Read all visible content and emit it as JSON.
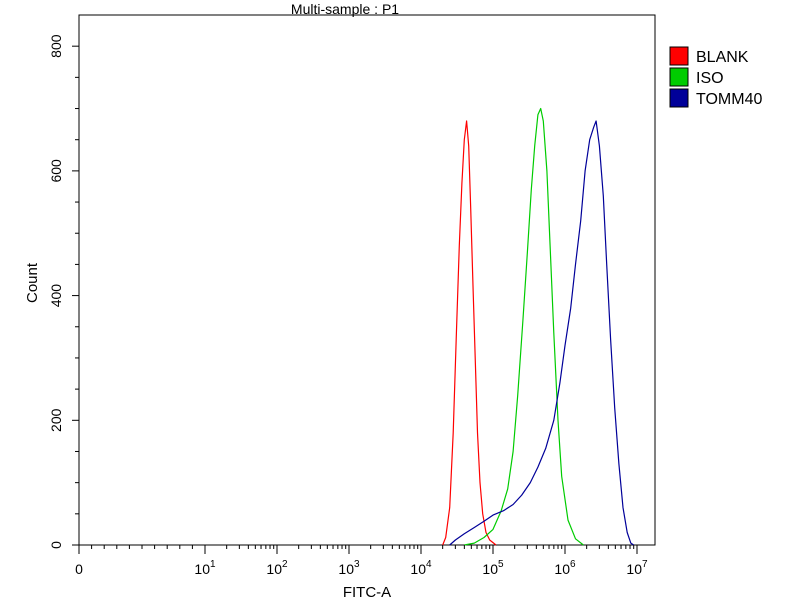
{
  "chart_data": {
    "type": "line",
    "title": "Multi-sample : P1",
    "xlabel": "FITC-A",
    "ylabel": "Count",
    "x_scale": "log",
    "xlim": [
      0,
      10000000
    ],
    "ylim": [
      0,
      850
    ],
    "x_ticks": [
      {
        "value": 0,
        "base": "0",
        "exp": ""
      },
      {
        "value": 10,
        "base": "10",
        "exp": "1"
      },
      {
        "value": 100,
        "base": "10",
        "exp": "2"
      },
      {
        "value": 1000,
        "base": "10",
        "exp": "3"
      },
      {
        "value": 10000,
        "base": "10",
        "exp": "4"
      },
      {
        "value": 100000,
        "base": "10",
        "exp": "5"
      },
      {
        "value": 1000000,
        "base": "10",
        "exp": "6"
      },
      {
        "value": 10000000,
        "base": "10",
        "exp": "7"
      }
    ],
    "y_ticks": [
      0,
      200,
      400,
      600,
      800
    ],
    "grid": false,
    "legend_position": "right",
    "series": [
      {
        "name": "BLANK",
        "color": "#ff0000",
        "points": [
          [
            20000,
            0
          ],
          [
            22000,
            12
          ],
          [
            25000,
            60
          ],
          [
            28000,
            180
          ],
          [
            31000,
            340
          ],
          [
            34000,
            480
          ],
          [
            37000,
            580
          ],
          [
            40000,
            650
          ],
          [
            43000,
            680
          ],
          [
            46000,
            640
          ],
          [
            49000,
            540
          ],
          [
            53000,
            410
          ],
          [
            57000,
            290
          ],
          [
            61000,
            180
          ],
          [
            66000,
            100
          ],
          [
            72000,
            50
          ],
          [
            80000,
            20
          ],
          [
            90000,
            8
          ],
          [
            110000,
            0
          ]
        ]
      },
      {
        "name": "ISO",
        "color": "#00cc00",
        "points": [
          [
            40000,
            0
          ],
          [
            55000,
            3
          ],
          [
            75000,
            12
          ],
          [
            100000,
            25
          ],
          [
            130000,
            55
          ],
          [
            160000,
            90
          ],
          [
            190000,
            150
          ],
          [
            220000,
            240
          ],
          [
            260000,
            360
          ],
          [
            300000,
            470
          ],
          [
            340000,
            570
          ],
          [
            380000,
            640
          ],
          [
            420000,
            690
          ],
          [
            460000,
            700
          ],
          [
            500000,
            680
          ],
          [
            560000,
            600
          ],
          [
            620000,
            480
          ],
          [
            700000,
            340
          ],
          [
            800000,
            200
          ],
          [
            900000,
            110
          ],
          [
            1100000,
            40
          ],
          [
            1400000,
            10
          ],
          [
            1800000,
            0
          ]
        ]
      },
      {
        "name": "TOMM40",
        "color": "#000099",
        "points": [
          [
            25000,
            0
          ],
          [
            30000,
            8
          ],
          [
            40000,
            18
          ],
          [
            55000,
            28
          ],
          [
            75000,
            38
          ],
          [
            100000,
            48
          ],
          [
            140000,
            55
          ],
          [
            190000,
            65
          ],
          [
            250000,
            80
          ],
          [
            330000,
            100
          ],
          [
            420000,
            125
          ],
          [
            540000,
            155
          ],
          [
            700000,
            200
          ],
          [
            850000,
            260
          ],
          [
            1000000,
            320
          ],
          [
            1200000,
            380
          ],
          [
            1400000,
            450
          ],
          [
            1650000,
            520
          ],
          [
            1900000,
            600
          ],
          [
            2200000,
            650
          ],
          [
            2500000,
            670
          ],
          [
            2700000,
            680
          ],
          [
            3000000,
            640
          ],
          [
            3400000,
            560
          ],
          [
            3800000,
            450
          ],
          [
            4300000,
            330
          ],
          [
            4900000,
            220
          ],
          [
            5600000,
            130
          ],
          [
            6400000,
            60
          ],
          [
            7300000,
            20
          ],
          [
            8200000,
            3
          ],
          [
            9000000,
            0
          ]
        ]
      }
    ]
  }
}
